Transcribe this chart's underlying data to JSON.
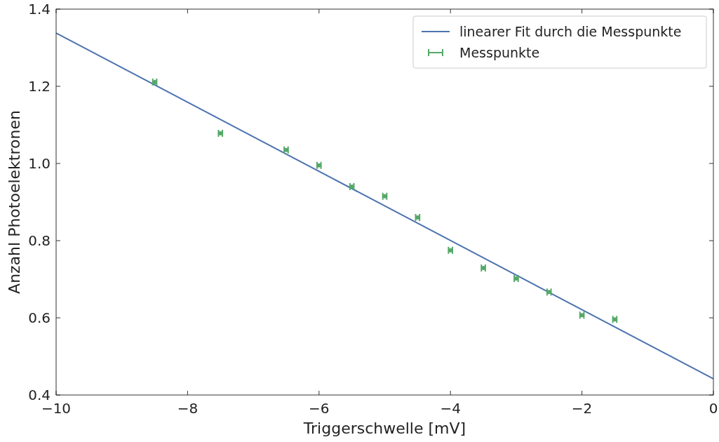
{
  "chart_data": {
    "type": "scatter",
    "xlabel": "Triggerschwelle [mV]",
    "ylabel": "Anzahl Photoelektronen",
    "xlim": [
      -10,
      0
    ],
    "xticks": [
      {
        "value": -10,
        "label": "−10"
      },
      {
        "value": -8,
        "label": "−8"
      },
      {
        "value": -6,
        "label": "−6"
      },
      {
        "value": -4,
        "label": "−4"
      },
      {
        "value": -2,
        "label": "−2"
      },
      0
    ],
    "ylim": [
      0.4,
      1.4
    ],
    "yticks": [
      0.4,
      0.6,
      0.8,
      {
        "value": 1,
        "label": "1.0"
      },
      1.2,
      1.4
    ],
    "grid": false,
    "legend": "top right",
    "series": [
      {
        "name": "linearer Fit durch die Messpunkte",
        "type": "line",
        "color": "#4c72b0",
        "x": [
          -10,
          0
        ],
        "values": [
          1.338,
          0.442
        ]
      },
      {
        "name": "Messpunkte",
        "color": "#55a868",
        "x": [
          -8.5,
          -7.5,
          -6.5,
          -6,
          -5.5,
          -5,
          -4.5,
          -4,
          -3.5,
          -3,
          -2.5,
          -2,
          -1.5
        ],
        "values": [
          1.211,
          1.078,
          1.035,
          0.995,
          0.94,
          0.915,
          0.86,
          0.775,
          0.729,
          0.702,
          0.667,
          0.607,
          0.596
        ],
        "xerrors": [
          0.03,
          0.03,
          0.03,
          0.03,
          0.03,
          0.03,
          0.03,
          0.03,
          0.03,
          0.03,
          0.03,
          0.03,
          0.03
        ]
      }
    ]
  }
}
